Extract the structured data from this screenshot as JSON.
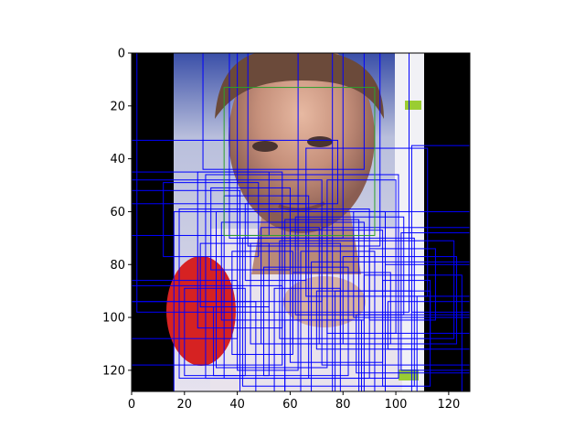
{
  "chart_data": {
    "type": "image-with-bounding-boxes",
    "title": "",
    "xlabel": "",
    "ylabel": "",
    "xlim": [
      0,
      128
    ],
    "ylim": [
      128,
      0
    ],
    "y_axis_inverted": true,
    "grid": false,
    "legend": "none",
    "x_ticks": [
      0,
      20,
      40,
      60,
      80,
      100,
      120
    ],
    "y_ticks": [
      0,
      20,
      40,
      60,
      80,
      100,
      120
    ],
    "image": {
      "description_icon": "face-photo-image",
      "extent": [
        0,
        128,
        128,
        0
      ],
      "background_color": "#000000",
      "photo_extent": [
        16,
        110,
        0,
        128
      ]
    },
    "highlight_box": {
      "x0": 35,
      "y0": 13,
      "x1": 92,
      "y1": 69,
      "color": "#2ca02c"
    },
    "box_color": "#0000ff",
    "boxes": [
      [
        0,
        0,
        128,
        128
      ],
      [
        0,
        0,
        76,
        128
      ],
      [
        2,
        0,
        105,
        98
      ],
      [
        27,
        0,
        88,
        44
      ],
      [
        37,
        0,
        80,
        70
      ],
      [
        40,
        0,
        63,
        120
      ],
      [
        44,
        0,
        94,
        73
      ],
      [
        0,
        33,
        78,
        57
      ],
      [
        0,
        45,
        52,
        69
      ],
      [
        0,
        48,
        72,
        94
      ],
      [
        0,
        52,
        41,
        128
      ],
      [
        0,
        86,
        40,
        108
      ],
      [
        0,
        88,
        57,
        118
      ],
      [
        0,
        94,
        47,
        128
      ],
      [
        16,
        60,
        96,
        128
      ],
      [
        18,
        59,
        90,
        123
      ],
      [
        25,
        45,
        57,
        104
      ],
      [
        28,
        46,
        101,
        123
      ],
      [
        32,
        60,
        74,
        119
      ],
      [
        34,
        64,
        88,
        101
      ],
      [
        35,
        54,
        67,
        123
      ],
      [
        38,
        75,
        61,
        114
      ],
      [
        42,
        70,
        107,
        126
      ],
      [
        45,
        72,
        79,
        110
      ],
      [
        50,
        81,
        82,
        122
      ],
      [
        56,
        71,
        122,
        108
      ],
      [
        58,
        63,
        86,
        128
      ],
      [
        60,
        67,
        95,
        117
      ],
      [
        61,
        83,
        98,
        110
      ],
      [
        62,
        62,
        103,
        99
      ],
      [
        64,
        75,
        92,
        128
      ],
      [
        66,
        36,
        112,
        92
      ],
      [
        68,
        79,
        128,
        128
      ],
      [
        70,
        90,
        113,
        112
      ],
      [
        72,
        66,
        128,
        118
      ],
      [
        74,
        48,
        100,
        106
      ],
      [
        77,
        90,
        106,
        128
      ],
      [
        80,
        77,
        123,
        110
      ],
      [
        84,
        60,
        128,
        100
      ],
      [
        88,
        84,
        125,
        128
      ],
      [
        96,
        80,
        128,
        106
      ],
      [
        97,
        94,
        128,
        112
      ],
      [
        102,
        68,
        128,
        120
      ],
      [
        106,
        35,
        128,
        98
      ],
      [
        108,
        92,
        128,
        128
      ],
      [
        20,
        89,
        43,
        122
      ],
      [
        26,
        72,
        52,
        96
      ],
      [
        31,
        96,
        52,
        122
      ],
      [
        49,
        66,
        71,
        110
      ],
      [
        54,
        89,
        79,
        128
      ],
      [
        58,
        101,
        87,
        128
      ],
      [
        85,
        99,
        128,
        121
      ],
      [
        90,
        74,
        115,
        101
      ],
      [
        30,
        51,
        60,
        82
      ],
      [
        12,
        49,
        48,
        77
      ],
      [
        43,
        57,
        66,
        86
      ],
      [
        95,
        86,
        113,
        126
      ]
    ]
  }
}
